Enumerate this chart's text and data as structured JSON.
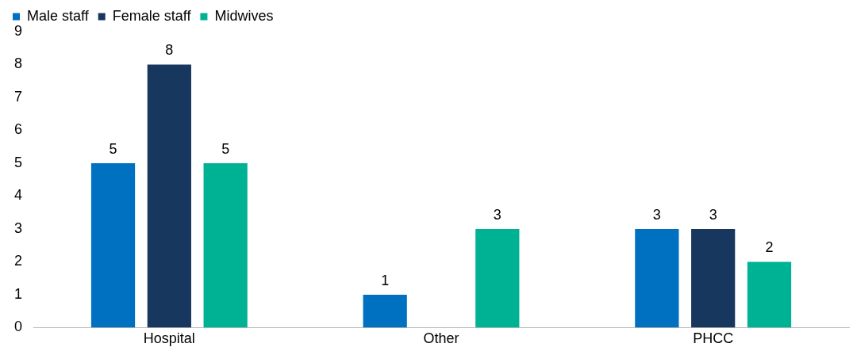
{
  "chart_data": {
    "type": "bar",
    "categories": [
      "Hospital",
      "Other",
      "PHCC"
    ],
    "series": [
      {
        "name": "Male staff",
        "color": "#0070c0",
        "values": [
          5,
          1,
          3
        ]
      },
      {
        "name": "Female staff",
        "color": "#17375e",
        "values": [
          8,
          null,
          3
        ]
      },
      {
        "name": "Midwives",
        "color": "#00b294",
        "values": [
          5,
          3,
          2
        ]
      }
    ],
    "ylim": [
      0,
      9
    ],
    "yticks": [
      0,
      1,
      2,
      3,
      4,
      5,
      6,
      7,
      8,
      9
    ],
    "grid": false,
    "legend": "top left",
    "data_labels": true
  }
}
